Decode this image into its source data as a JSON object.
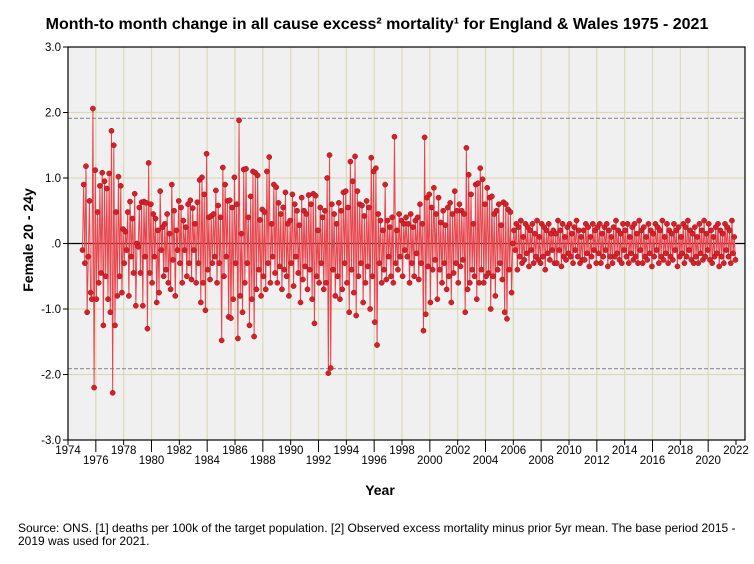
{
  "chart_data": {
    "type": "line",
    "title": "Month-to month change in all cause excess² mortality¹  for England & Wales 1975 - 2021",
    "xlabel": "Year",
    "ylabel": "Female 20 - 24y",
    "xlim": [
      1974,
      2022
    ],
    "ylim": [
      -3.0,
      3.0
    ],
    "x_ticks": [
      "1974",
      "1976",
      "1978",
      "1980",
      "1982",
      "1984",
      "1986",
      "1988",
      "1990",
      "1992",
      "1994",
      "1996",
      "1998",
      "2000",
      "2002",
      "2004",
      "2006",
      "2008",
      "2010",
      "2012",
      "2014",
      "2016",
      "2018",
      "2020",
      "2022"
    ],
    "y_ticks": [
      "3.0",
      "2.0",
      "1.0",
      ".0",
      "-1.0",
      "-2.0",
      "-3.0"
    ],
    "reference_lines": [
      1.91,
      -1.91,
      0
    ],
    "grid": true,
    "series_start": "1975-01",
    "frequency": "monthly",
    "colors": {
      "line": "#e8444c",
      "marker": "#d8202a",
      "ref": "#999999",
      "grid": "#ddd8b8",
      "bg": "#f0f0f0"
    },
    "values": [
      -0.1,
      0.9,
      -0.3,
      1.18,
      -1.05,
      -0.2,
      0.65,
      -0.75,
      -0.85,
      2.06,
      -2.2,
      1.12,
      -0.85,
      0.48,
      -0.6,
      0.88,
      -0.45,
      1.08,
      -1.25,
      0.95,
      -0.5,
      0.84,
      -0.85,
      1.07,
      -1.05,
      1.72,
      -2.28,
      1.5,
      -1.25,
      0.48,
      -0.8,
      1.02,
      -0.5,
      0.88,
      -0.75,
      0.22,
      -0.3,
      0.18,
      -0.1,
      0.48,
      -0.8,
      0.64,
      -0.2,
      0.38,
      -0.45,
      0.76,
      -0.95,
      0.0,
      -0.05,
      0.55,
      -0.45,
      0.63,
      -0.95,
      0.64,
      -0.2,
      0.62,
      -1.3,
      1.23,
      -0.45,
      0.6,
      -0.6,
      0.45,
      -0.2,
      0.38,
      -0.9,
      0.2,
      -0.75,
      0.8,
      -0.1,
      0.25,
      -0.5,
      0.3,
      -0.4,
      0.45,
      -0.6,
      0.15,
      -0.7,
      0.9,
      -0.25,
      0.5,
      -0.8,
      0.2,
      -0.1,
      0.65,
      -0.3,
      0.55,
      -0.6,
      0.35,
      -0.1,
      0.25,
      -0.5,
      0.6,
      -0.3,
      0.66,
      -0.55,
      0.54,
      -0.1,
      0.3,
      -0.6,
      0.63,
      -0.3,
      0.97,
      -0.9,
      1.01,
      -0.6,
      0.75,
      -1.02,
      1.37,
      -0.4,
      0.4,
      -0.55,
      0.42,
      -0.3,
      0.45,
      -0.2,
      0.81,
      -0.6,
      0.58,
      -0.3,
      0.4,
      -1.48,
      1.16,
      -0.5,
      0.9,
      -0.2,
      0.65,
      -1.12,
      0.66,
      -1.14,
      0.55,
      -0.85,
      1.01,
      -0.3,
      0.6,
      -1.45,
      1.88,
      -0.8,
      0.15,
      -1.05,
      1.13,
      -0.6,
      1.14,
      -0.3,
      0.4,
      -1.25,
      0.72,
      -0.85,
      1.1,
      -1.42,
      1.08,
      -0.7,
      1.04,
      -0.4,
      0.36,
      -0.8,
      0.52,
      -0.5,
      0.48,
      -0.7,
      1.1,
      -0.3,
      1.32,
      -0.6,
      0.3,
      -0.2,
      0.9,
      -0.45,
      0.86,
      -0.6,
      0.62,
      -0.35,
      0.45,
      -0.7,
      0.55,
      -0.4,
      0.78,
      -0.5,
      0.3,
      -0.8,
      0.35,
      -0.3,
      0.75,
      -0.65,
      0.6,
      -0.2,
      0.5,
      -0.45,
      0.28,
      -0.9,
      0.7,
      -0.55,
      0.5,
      -0.35,
      0.45,
      -0.7,
      0.74,
      -0.4,
      0.6,
      -0.85,
      0.76,
      -1.22,
      0.73,
      -0.5,
      0.2,
      -0.6,
      0.55,
      -0.3,
      0.4,
      -0.7,
      0.5,
      -0.6,
      1.0,
      -1.98,
      1.35,
      -1.9,
      0.6,
      -0.4,
      0.45,
      -0.8,
      0.3,
      -0.5,
      0.62,
      -0.85,
      0.5,
      -0.7,
      0.78,
      -0.3,
      0.8,
      -0.6,
      0.55,
      -1.05,
      1.25,
      -0.4,
      0.95,
      -0.75,
      1.33,
      -1.1,
      0.8,
      -0.5,
      0.6,
      -0.3,
      0.58,
      -0.9,
      0.42,
      -0.6,
      0.65,
      -0.35,
      0.55,
      -1.0,
      1.31,
      -0.5,
      1.1,
      -1.2,
      1.15,
      -1.55,
      0.45,
      -0.3,
      0.35,
      -0.6,
      0.2,
      -0.4,
      0.9,
      -0.55,
      0.35,
      -0.2,
      0.25,
      -0.5,
      0.4,
      -0.6,
      1.63,
      -0.3,
      0.2,
      -0.4,
      0.45,
      -0.2,
      0.35,
      -0.5,
      0.3,
      -0.1,
      0.4,
      -0.2,
      0.3,
      -0.6,
      0.45,
      -0.3,
      0.25,
      -0.5,
      0.35,
      -0.15,
      0.4,
      -0.55,
      0.6,
      -0.3,
      0.3,
      -1.33,
      1.62,
      -1.08,
      0.7,
      -0.35,
      0.75,
      -0.9,
      0.55,
      -0.4,
      0.85,
      -0.25,
      0.45,
      -0.85,
      0.7,
      -0.4,
      0.32,
      -0.6,
      0.5,
      -0.3,
      0.28,
      -0.7,
      0.55,
      -0.5,
      0.62,
      -0.9,
      0.45,
      -0.45,
      0.8,
      -0.3,
      0.5,
      -0.6,
      0.6,
      -0.35,
      0.5,
      -0.25,
      0.45,
      -1.05,
      1.46,
      -0.7,
      1.05,
      -0.6,
      0.75,
      -0.4,
      0.3,
      -0.5,
      0.9,
      -0.85,
      0.92,
      -0.6,
      1.15,
      -0.4,
      0.98,
      -0.6,
      0.6,
      -0.5,
      0.85,
      -0.45,
      0.7,
      -1.0,
      0.72,
      -0.5,
      0.45,
      -0.8,
      0.5,
      -0.4,
      0.6,
      -0.3,
      0.28,
      -0.55,
      0.63,
      -1.05,
      0.6,
      -1.15,
      0.52,
      -0.4,
      0.48,
      -0.75,
      0.0,
      0.2,
      -0.1,
      0.3,
      -0.4,
      0.25,
      -0.2,
      0.35,
      -0.3,
      0.1,
      -0.25,
      0.3,
      -0.15,
      0.25,
      -0.35,
      0.2,
      -0.1,
      0.3,
      -0.3,
      0.15,
      -0.2,
      0.35,
      -0.25,
      0.1,
      -0.3,
      0.3,
      -0.2,
      0.25,
      -0.4,
      0.2,
      -0.15,
      0.3,
      -0.25,
      0.15,
      -0.1,
      0.2,
      -0.3,
      0.15,
      -0.3,
      0.35,
      -0.1,
      0.2,
      -0.35,
      0.3,
      -0.2,
      0.1,
      -0.25,
      0.25,
      -0.15,
      0.3,
      -0.2,
      0.15,
      -0.3,
      0.25,
      -0.1,
      0.35,
      -0.2,
      0.2,
      -0.3,
      0.1,
      -0.25,
      0.2,
      -0.25,
      0.3,
      -0.15,
      0.25,
      -0.35,
      0.1,
      -0.2,
      0.3,
      -0.1,
      0.2,
      -0.3,
      0.25,
      -0.15,
      0.3,
      -0.3,
      0.15,
      -0.2,
      0.25,
      -0.1,
      0.3,
      -0.35,
      0.2,
      -0.2,
      0.1,
      -0.3,
      0.25,
      -0.2,
      0.35,
      -0.15,
      0.2,
      -0.25,
      0.15,
      -0.3,
      0.3,
      -0.1,
      0.2,
      -0.2,
      0.3,
      -0.3,
      0.1,
      -0.15,
      0.25,
      -0.25,
      0.3,
      -0.2,
      0.15,
      -0.3,
      0.35,
      -0.1,
      0.2,
      -0.3,
      0.25,
      -0.2,
      0.1,
      -0.25,
      0.3,
      -0.15,
      0.2,
      -0.35,
      0.15,
      -0.2,
      0.3,
      -0.1,
      0.25,
      -0.3,
      0.2,
      -0.2,
      0.35,
      -0.25,
      0.1,
      -0.15,
      0.3,
      -0.3,
      0.2,
      -0.2,
      0.15,
      -0.25,
      0.3,
      -0.1,
      0.2,
      -0.35,
      0.25,
      -0.2,
      0.1,
      -0.15,
      0.3,
      -0.3,
      0.25,
      -0.2,
      0.35,
      -0.1,
      0.2,
      -0.25,
      0.15,
      -0.3,
      0.25,
      -0.2,
      0.1,
      -0.3,
      0.3,
      -0.15,
      0.2,
      -0.25,
      0.35,
      -0.2,
      0.15,
      -0.1,
      0.3,
      -0.25,
      0.2,
      -0.3,
      0.1,
      -0.2,
      0.25,
      -0.15,
      0.3,
      -0.35,
      0.2,
      -0.2,
      0.15,
      -0.3,
      0.3,
      -0.1,
      0.25,
      -0.2,
      0.2,
      -0.3,
      0.35,
      -0.15,
      0.1,
      -0.25
    ]
  },
  "footnote": "Source: ONS. [1] deaths per 100k of the target population. [2] Observed excess mortality minus prior 5yr mean. The base period 2015 - 2019 was used for 2021."
}
